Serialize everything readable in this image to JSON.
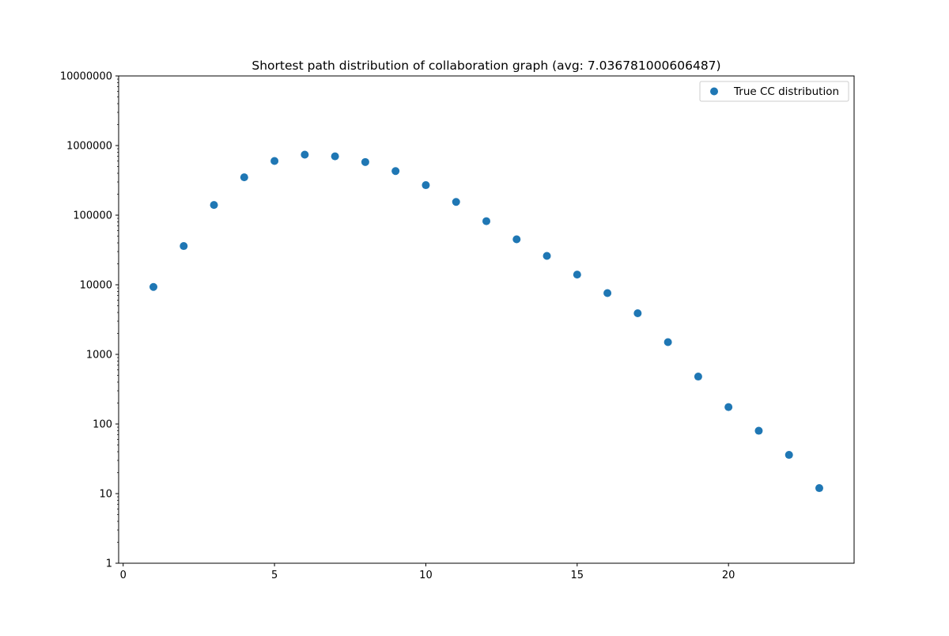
{
  "chart_data": {
    "type": "scatter",
    "title": "Shortest path distribution of collaboration graph (avg: 7.036781000606487)",
    "xlabel": "",
    "ylabel": "",
    "xlim": [
      -0.15,
      24.15
    ],
    "ylim": [
      1,
      10000000
    ],
    "yscale": "log",
    "grid": false,
    "legend_position": "top-right",
    "x_ticks": [
      0,
      5,
      10,
      15,
      20
    ],
    "x_tick_labels": [
      "0",
      "5",
      "10",
      "15",
      "20"
    ],
    "y_ticks": [
      1,
      10,
      100,
      1000,
      10000,
      100000,
      1000000,
      10000000
    ],
    "y_tick_labels": [
      "1",
      "10",
      "100",
      "1000",
      "10000",
      "100000",
      "1000000",
      "10000000"
    ],
    "series": [
      {
        "name": "True CC distribution",
        "color": "#1f77b4",
        "x": [
          1,
          2,
          3,
          4,
          5,
          6,
          7,
          8,
          9,
          10,
          11,
          12,
          13,
          14,
          15,
          16,
          17,
          18,
          19,
          20,
          21,
          22,
          23
        ],
        "y": [
          9300,
          36000,
          140000,
          350000,
          600000,
          740000,
          700000,
          580000,
          430000,
          270000,
          155000,
          82000,
          45000,
          26000,
          14000,
          7600,
          3900,
          1500,
          480,
          175,
          80,
          36,
          12
        ]
      }
    ]
  }
}
